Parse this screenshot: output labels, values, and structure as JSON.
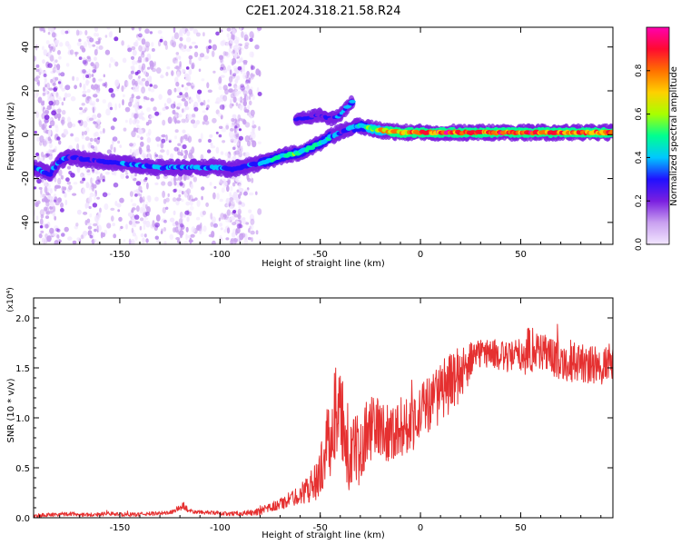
{
  "figure": {
    "title": "C2E1.2024.318.21.58.R24"
  },
  "colorbar": {
    "label": "Normalized spectral amplitude",
    "ticks": [
      "0.0",
      "0.2",
      "0.4",
      "0.6",
      "0.8"
    ]
  },
  "colors": {
    "snr_line": "#e53030",
    "colormap": [
      "#f2e6ff",
      "#c9a0f0",
      "#7a1fe0",
      "#2010ff",
      "#00c8ff",
      "#00ff90",
      "#a8ff00",
      "#ffd000",
      "#ff7000",
      "#ff0a30",
      "#ff00b0"
    ]
  },
  "chart_data": [
    {
      "type": "heatmap",
      "title": "C2E1.2024.318.21.58.R24",
      "xlabel": "Height of straight line (km)",
      "ylabel": "Frequency (Hz)",
      "xlim": [
        -193,
        96
      ],
      "ylim": [
        -50,
        49
      ],
      "x_ticks": [
        -150,
        -100,
        -50,
        0,
        50
      ],
      "x_tick_labels": [
        "-150",
        "-100",
        "-50",
        "0",
        "50"
      ],
      "y_ticks": [
        -40,
        -20,
        0,
        20,
        40
      ],
      "y_tick_labels": [
        "-40",
        "-20",
        "0",
        "20",
        "40"
      ],
      "value_range": [
        0,
        1
      ],
      "main_ridge": {
        "x": [
          -193,
          -185,
          -180,
          -175,
          -170,
          -160,
          -150,
          -140,
          -130,
          -120,
          -110,
          -100,
          -95,
          -90,
          -85,
          -80,
          -75,
          -70,
          -65,
          -60,
          -55,
          -50,
          -45,
          -40,
          -35,
          -30,
          -25,
          -20,
          -10,
          0,
          10,
          20,
          30,
          40,
          50,
          60,
          70,
          80,
          90,
          96
        ],
        "frequency": [
          -15,
          -18,
          -12,
          -10,
          -11,
          -12,
          -13,
          -14,
          -15,
          -15,
          -15,
          -15,
          -16,
          -15,
          -14,
          -13,
          -12,
          -10,
          -9,
          -8,
          -6,
          -4,
          -1,
          1,
          3,
          4,
          3,
          2,
          1,
          1,
          1,
          1,
          1,
          1,
          1,
          1,
          1,
          1,
          1,
          1
        ],
        "amplitude": [
          0.38,
          0.36,
          0.34,
          0.32,
          0.3,
          0.32,
          0.34,
          0.36,
          0.38,
          0.4,
          0.4,
          0.38,
          0.34,
          0.32,
          0.36,
          0.42,
          0.46,
          0.5,
          0.52,
          0.52,
          0.5,
          0.48,
          0.44,
          0.3,
          0.38,
          0.48,
          0.62,
          0.72,
          0.82,
          0.88,
          0.9,
          0.9,
          0.88,
          0.88,
          0.88,
          0.88,
          0.86,
          0.84,
          0.84,
          0.82
        ]
      },
      "secondary_ridge": {
        "x": [
          -62,
          -55,
          -50,
          -45,
          -40,
          -37,
          -34
        ],
        "frequency": [
          7,
          8,
          9,
          7,
          9,
          12,
          15
        ],
        "amplitude": [
          0.3,
          0.3,
          0.28,
          0.3,
          0.36,
          0.4,
          0.42
        ]
      },
      "background_scatter": {
        "x_range": [
          -193,
          -80
        ],
        "frequency_range": [
          -50,
          49
        ],
        "amplitude_max": 0.25
      }
    },
    {
      "type": "line",
      "xlabel": "Height of straight line (km)",
      "ylabel": "SNR (10 * v/v)",
      "y_multiplier": "(x10⁴)",
      "xlim": [
        -193,
        96
      ],
      "ylim": [
        0,
        2.2
      ],
      "x_ticks": [
        -150,
        -100,
        -50,
        0,
        50
      ],
      "x_tick_labels": [
        "-150",
        "-100",
        "-50",
        "0",
        "50"
      ],
      "y_ticks": [
        0,
        0.5,
        1.0,
        1.5,
        2.0
      ],
      "y_tick_labels": [
        "0.0",
        "0.5",
        "1.0",
        "1.5",
        "2.0"
      ],
      "series": [
        {
          "color": "#e53030",
          "x": [
            -193,
            -185,
            -175,
            -165,
            -155,
            -145,
            -135,
            -125,
            -118,
            -115,
            -105,
            -95,
            -85,
            -80,
            -75,
            -70,
            -65,
            -60,
            -55,
            -50,
            -47,
            -44,
            -42,
            -40,
            -38,
            -36,
            -33,
            -30,
            -27,
            -24,
            -20,
            -15,
            -10,
            -5,
            0,
            5,
            10,
            15,
            20,
            25,
            30,
            35,
            40,
            45,
            50,
            55,
            60,
            65,
            70,
            75,
            80,
            85,
            90,
            96
          ],
          "values": [
            0.02,
            0.03,
            0.04,
            0.03,
            0.04,
            0.03,
            0.04,
            0.05,
            0.12,
            0.06,
            0.05,
            0.04,
            0.05,
            0.06,
            0.1,
            0.14,
            0.18,
            0.24,
            0.3,
            0.45,
            0.7,
            0.9,
            1.1,
            1.0,
            0.75,
            0.6,
            0.65,
            0.75,
            0.85,
            0.9,
            0.9,
            0.85,
            0.9,
            0.95,
            1.05,
            1.15,
            1.25,
            1.35,
            1.45,
            1.55,
            1.65,
            1.65,
            1.62,
            1.6,
            1.62,
            1.7,
            1.68,
            1.62,
            1.58,
            1.56,
            1.55,
            1.52,
            1.52,
            1.55
          ],
          "noise_amplitude": [
            0.02,
            0.02,
            0.02,
            0.02,
            0.02,
            0.02,
            0.02,
            0.02,
            0.04,
            0.02,
            0.02,
            0.02,
            0.03,
            0.04,
            0.05,
            0.06,
            0.08,
            0.1,
            0.15,
            0.25,
            0.35,
            0.45,
            0.5,
            0.5,
            0.4,
            0.35,
            0.35,
            0.35,
            0.35,
            0.35,
            0.3,
            0.3,
            0.3,
            0.3,
            0.3,
            0.3,
            0.3,
            0.3,
            0.28,
            0.2,
            0.15,
            0.15,
            0.15,
            0.16,
            0.2,
            0.25,
            0.22,
            0.2,
            0.2,
            0.2,
            0.2,
            0.2,
            0.2,
            0.2
          ]
        }
      ]
    }
  ]
}
